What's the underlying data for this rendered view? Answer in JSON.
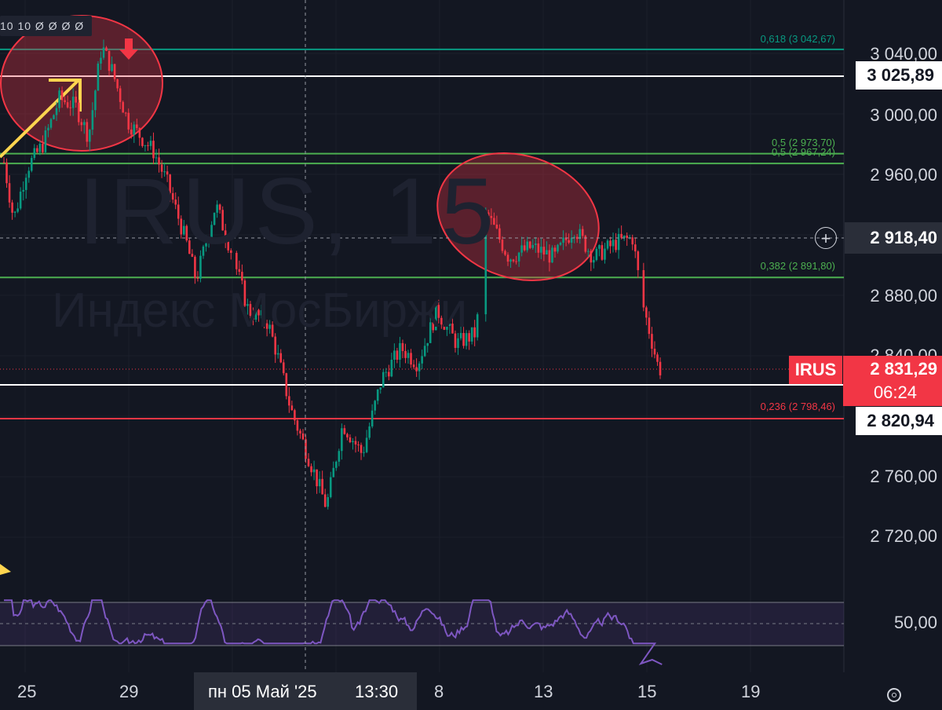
{
  "ohlc_label": "10 10 Ø Ø Ø Ø",
  "watermark": {
    "symbol": "IRUS, 15",
    "name": "Индекс МосБиржи"
  },
  "y_ticks": [
    "3 040,00",
    "3 000,00",
    "2 960,00",
    "2 880,00",
    "2 840,00",
    "2 760,00",
    "2 720,00"
  ],
  "rsi_tick": "50,00",
  "price_labels": {
    "line1": "3 025,89",
    "crosshair": "2 918,40",
    "symbol": "IRUS",
    "last": "2 831,29",
    "countdown": "06:24",
    "line2": "2 820,94"
  },
  "fib_levels": [
    {
      "label": "0,618 (3 042,67)",
      "price": 3042.67,
      "color": "#089981"
    },
    {
      "label": "0,5 (2 973,70)",
      "price": 2973.7,
      "color": "#4caf50"
    },
    {
      "label": "0,5 (2 967,24)",
      "price": 2967.24,
      "color": "#4caf50"
    },
    {
      "label": "0,382 (2 891,80)",
      "price": 2891.8,
      "color": "#4caf50"
    },
    {
      "label": "0,236 (2 798,46)",
      "price": 2798.46,
      "color": "#f23645"
    }
  ],
  "x_ticks": [
    "25",
    "29",
    "8",
    "13",
    "15",
    "19"
  ],
  "crosshair_date": "пн 05 Май '25",
  "crosshair_time": "13:30",
  "colors": {
    "up": "#089981",
    "down": "#f23645",
    "rsi": "#7e57c2",
    "bg": "#131722",
    "annotation": "#ffd54f"
  },
  "chart_data": {
    "type": "candlestick",
    "y_range": [
      2700,
      3060
    ],
    "close_path_x": [
      "25",
      "29",
      "8",
      "13",
      "15"
    ],
    "close_path": [
      {
        "x": 0,
        "y": 2968
      },
      {
        "x": 0.3,
        "y": 2930
      },
      {
        "x": 0.7,
        "y": 2964
      },
      {
        "x": 1.2,
        "y": 2980
      },
      {
        "x": 1.7,
        "y": 3010
      },
      {
        "x": 2.2,
        "y": 3005
      },
      {
        "x": 2.6,
        "y": 2985
      },
      {
        "x": 3.0,
        "y": 3045
      },
      {
        "x": 3.3,
        "y": 3030
      },
      {
        "x": 3.8,
        "y": 2995
      },
      {
        "x": 4.6,
        "y": 2975
      },
      {
        "x": 5.0,
        "y": 2955
      },
      {
        "x": 5.6,
        "y": 2915
      },
      {
        "x": 5.9,
        "y": 2890
      },
      {
        "x": 6.5,
        "y": 2940
      },
      {
        "x": 7.0,
        "y": 2908
      },
      {
        "x": 7.5,
        "y": 2870
      },
      {
        "x": 8.1,
        "y": 2862
      },
      {
        "x": 8.4,
        "y": 2840
      },
      {
        "x": 8.8,
        "y": 2805
      },
      {
        "x": 9.4,
        "y": 2770
      },
      {
        "x": 9.9,
        "y": 2740
      },
      {
        "x": 10.4,
        "y": 2795
      },
      {
        "x": 11.0,
        "y": 2775
      },
      {
        "x": 11.6,
        "y": 2825
      },
      {
        "x": 12.2,
        "y": 2845
      },
      {
        "x": 12.7,
        "y": 2835
      },
      {
        "x": 13.3,
        "y": 2870
      },
      {
        "x": 13.9,
        "y": 2848
      },
      {
        "x": 14.5,
        "y": 2855
      },
      {
        "x": 14.8,
        "y": 2935
      },
      {
        "x": 15.5,
        "y": 2905
      },
      {
        "x": 16.2,
        "y": 2912
      },
      {
        "x": 16.9,
        "y": 2905
      },
      {
        "x": 17.5,
        "y": 2925
      },
      {
        "x": 18.1,
        "y": 2905
      },
      {
        "x": 18.8,
        "y": 2915
      },
      {
        "x": 19.3,
        "y": 2918
      },
      {
        "x": 19.6,
        "y": 2875
      },
      {
        "x": 20.1,
        "y": 2831
      }
    ],
    "rsi": {
      "reference_level": 50,
      "upper_band": 70,
      "lower_band": 30
    }
  }
}
